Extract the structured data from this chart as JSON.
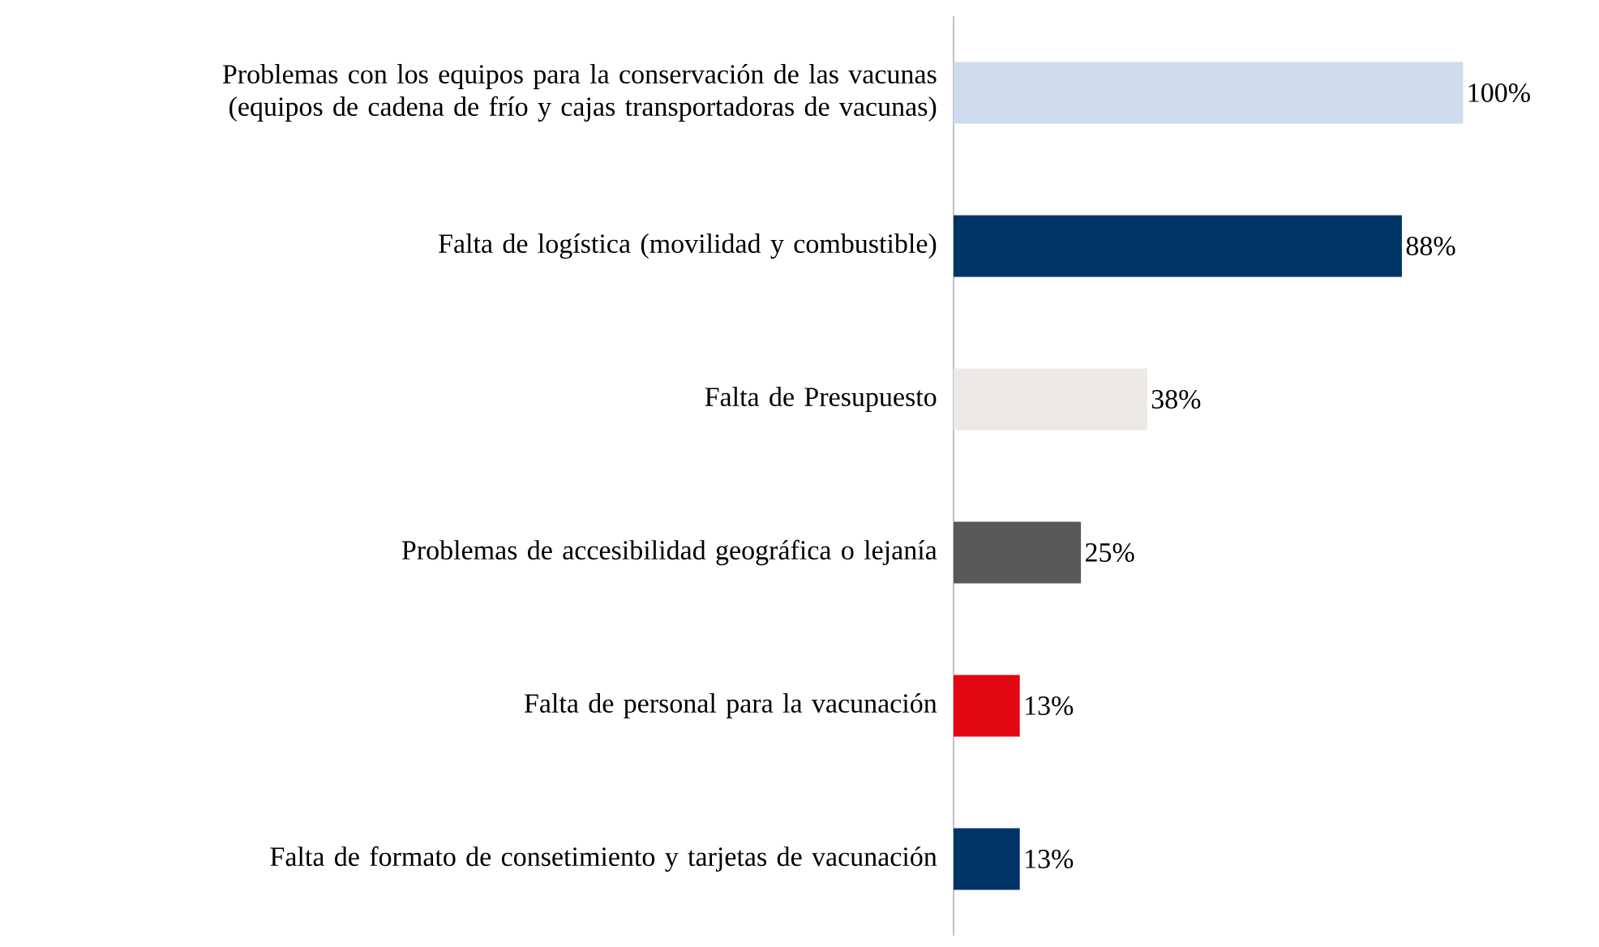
{
  "chart_data": {
    "type": "bar",
    "orientation": "horizontal",
    "categories": [
      "Problemas con los equipos para la conservación de las vacunas (equipos de cadena de frío y cajas transportadoras de vacunas)",
      "Falta de logística (movilidad y combustible)",
      "Falta de Presupuesto",
      "Problemas de accesibilidad geográfica o lejanía",
      "Falta de personal para la vacunación",
      "Falta de formato de consetimiento y tarjetas de vacunación"
    ],
    "values": [
      100,
      88,
      38,
      25,
      13,
      13
    ],
    "value_labels": [
      "100%",
      "88%",
      "38%",
      "25%",
      "13%",
      "13%"
    ],
    "colors": [
      "#cfdcee",
      "#003466",
      "#ece9e6",
      "#595959",
      "#e30613",
      "#003466"
    ]
  }
}
